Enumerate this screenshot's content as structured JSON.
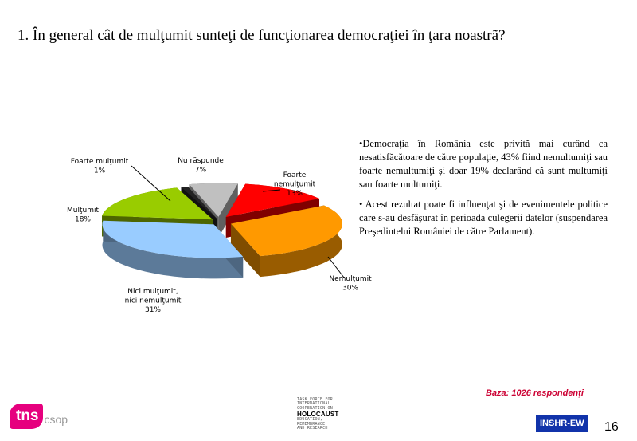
{
  "title": "1. În general cât de mulţumit sunteţi de funcţionarea democraţiei în ţara noastrã?",
  "chart_data": {
    "type": "pie",
    "categories": [
      "Foarte nemulţumit",
      "Nemulţumit",
      "Nici mulţumit, nici nemulţumit",
      "Mulţumit",
      "Foarte mulţumit",
      "Nu rãspunde"
    ],
    "values": [
      13,
      30,
      31,
      18,
      1,
      7
    ],
    "colors": [
      "#ff0000",
      "#ff9900",
      "#99ccff",
      "#99cc00",
      "#222222",
      "#c0c0c0"
    ],
    "labels": [
      {
        "lines": [
          "Foarte",
          "nemulţumit",
          "13%"
        ]
      },
      {
        "lines": [
          "Nemulţumit",
          "30%"
        ]
      },
      {
        "lines": [
          "Nici mulţumit,",
          "nici nemulţumit",
          "31%"
        ]
      },
      {
        "lines": [
          "Mulţumit",
          "18%"
        ]
      },
      {
        "lines": [
          "Foarte mulţumit",
          "1%"
        ]
      },
      {
        "lines": [
          "Nu rãspunde",
          "7%"
        ]
      }
    ],
    "exploded": true,
    "style": "3d"
  },
  "side_text": {
    "p1": "•Democraţia în România este privită mai curând ca nesatisfăcătoare de către populaţie, 43% fiind nemultumiţi sau foarte nemultumiţi şi doar 19% declarând că sunt multumiţi sau foarte multumiţi.",
    "p2": "• Acest rezultat poate  fi influenţat şi de evenimentele politice care s-au desfăşurat în perioada culegerii datelor (suspendarea Preşedintelui României de către Parlament)."
  },
  "footer": {
    "baza": "Baza: 1026 respondenţi",
    "tns": "tns",
    "csop": "csop",
    "taskforce_lines": [
      "TASK FORCE FOR",
      "INTERNATIONAL",
      "COOPERATION ON",
      "HOLOCAUST",
      "EDUCATION,",
      "REMEMBRANCE",
      "AND RESEARCH"
    ],
    "insh": "INSHR-EW",
    "page": "16"
  }
}
